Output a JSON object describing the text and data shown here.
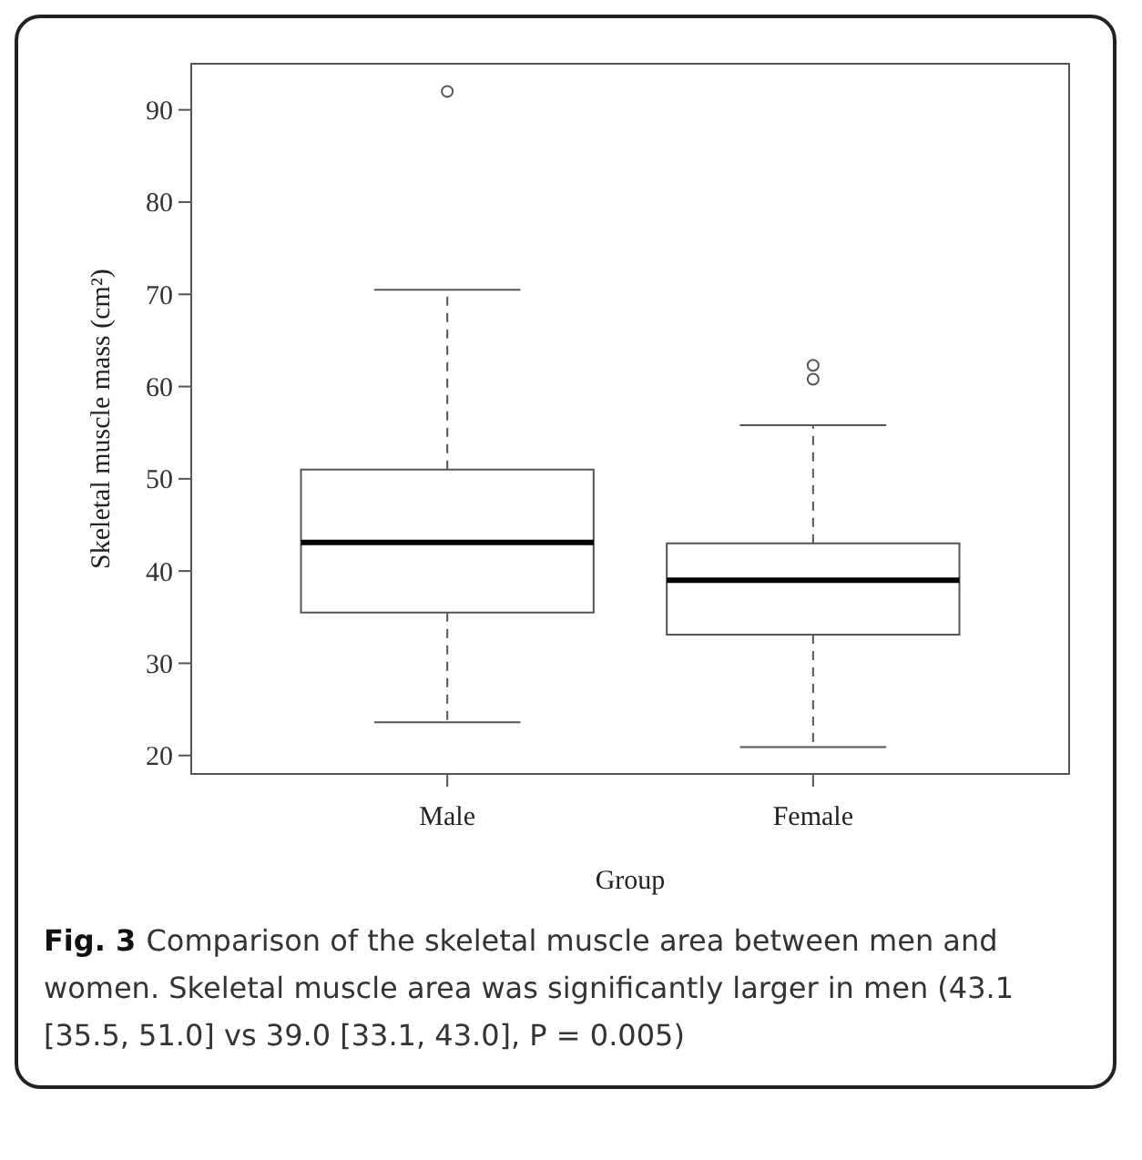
{
  "chart_data": {
    "type": "box",
    "xlabel": "Group",
    "ylabel": "Skeletal muscle mass (cm²)",
    "categories": [
      "Male",
      "Female"
    ],
    "boxes": [
      {
        "low": 23.6,
        "q1": 35.5,
        "median": 43.1,
        "q3": 51.0,
        "high": 70.5,
        "outliers": [
          92.0
        ]
      },
      {
        "low": 20.9,
        "q1": 33.1,
        "median": 39.0,
        "q3": 43.0,
        "high": 55.8,
        "outliers": [
          62.3,
          60.8
        ]
      }
    ],
    "ylim": [
      18,
      95
    ],
    "yticks": [
      20,
      30,
      40,
      50,
      60,
      70,
      80,
      90
    ],
    "grid": false,
    "annotations": [
      "Fig. 3",
      "Comparison of the skeletal muscle area between men and women. Skeletal muscle area was significantly larger in men (43.1 [35.5, 51.0] vs 39.0 [33.1, 43.0], P = 0.005)"
    ]
  }
}
